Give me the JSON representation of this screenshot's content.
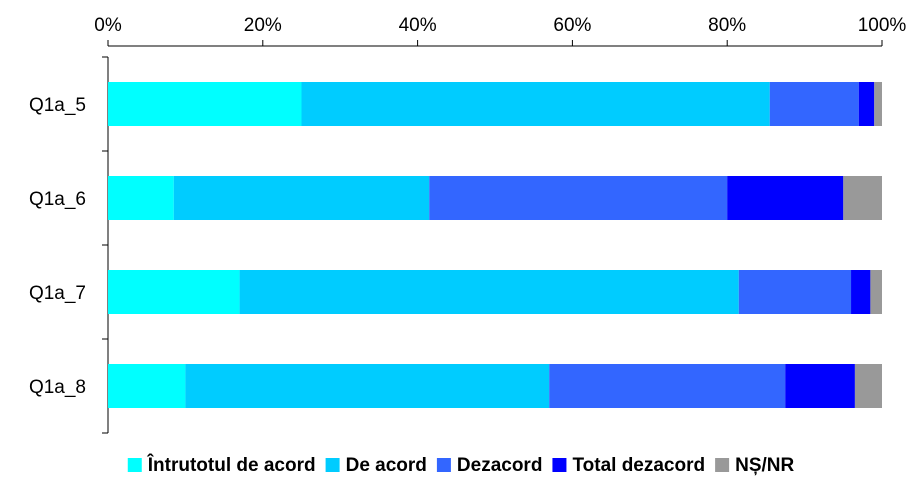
{
  "chart_data": {
    "type": "bar",
    "orientation": "horizontal",
    "stacked": true,
    "percent_stacked": true,
    "categories": [
      "Q1a_5",
      "Q1a_6",
      "Q1a_7",
      "Q1a_8"
    ],
    "series": [
      {
        "name": "Întrutotul de acord",
        "color": "#00ffff",
        "values": [
          25,
          8.5,
          17,
          10
        ]
      },
      {
        "name": "De acord",
        "color": "#00ccff",
        "values": [
          60.5,
          33,
          64.5,
          47
        ]
      },
      {
        "name": "Dezacord",
        "color": "#3366ff",
        "values": [
          11.5,
          38.5,
          14.5,
          30.5
        ]
      },
      {
        "name": "Total dezacord",
        "color": "#0000ff",
        "values": [
          2,
          15,
          2.5,
          9
        ]
      },
      {
        "name": "NȘ/NR",
        "color": "#999999",
        "values": [
          1,
          5,
          1.5,
          3.5
        ]
      }
    ],
    "xlim": [
      0,
      100
    ],
    "x_ticks": [
      "0%",
      "20%",
      "40%",
      "60%",
      "80%",
      "100%"
    ],
    "grid": false,
    "legend_position": "bottom"
  }
}
